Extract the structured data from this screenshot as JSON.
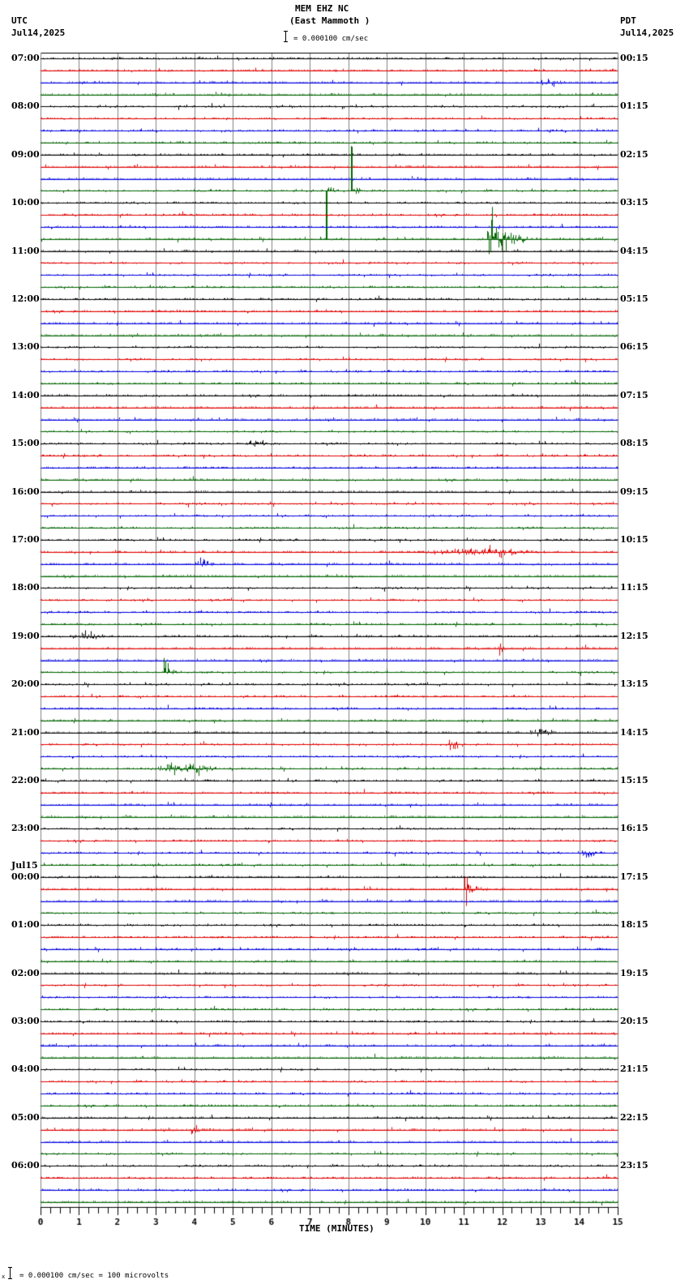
{
  "header": {
    "station": "MEM EHZ NC",
    "location": "(East Mammoth )",
    "left_tz": "UTC",
    "left_date": "Jul14,2025",
    "right_tz": "PDT",
    "right_date": "Jul14,2025",
    "scale_text": "= 0.000100 cm/sec"
  },
  "footer": {
    "scale_prefix": "x",
    "scale_text": "= 0.000100 cm/sec =     100 microvolts"
  },
  "chart_data": {
    "type": "line",
    "title": "MEM EHZ NC (East Mammoth )",
    "xlabel": "TIME (MINUTES)",
    "ylabel": "",
    "x_ticks": [
      "0",
      "1",
      "2",
      "3",
      "4",
      "5",
      "6",
      "7",
      "8",
      "9",
      "10",
      "11",
      "12",
      "13",
      "14",
      "15"
    ],
    "xlim": [
      0,
      15
    ],
    "grid": true,
    "trace_minutes": 15,
    "traces_per_hour": 4,
    "num_traces": 96,
    "trace_colors": [
      "#000000",
      "#e00000",
      "#0000e0",
      "#006400"
    ],
    "left_hour_labels": [
      {
        "trace": 0,
        "label": "07:00"
      },
      {
        "trace": 4,
        "label": "08:00"
      },
      {
        "trace": 8,
        "label": "09:00"
      },
      {
        "trace": 12,
        "label": "10:00"
      },
      {
        "trace": 16,
        "label": "11:00"
      },
      {
        "trace": 20,
        "label": "12:00"
      },
      {
        "trace": 24,
        "label": "13:00"
      },
      {
        "trace": 28,
        "label": "14:00"
      },
      {
        "trace": 32,
        "label": "15:00"
      },
      {
        "trace": 36,
        "label": "16:00"
      },
      {
        "trace": 40,
        "label": "17:00"
      },
      {
        "trace": 44,
        "label": "18:00"
      },
      {
        "trace": 48,
        "label": "19:00"
      },
      {
        "trace": 52,
        "label": "20:00"
      },
      {
        "trace": 56,
        "label": "21:00"
      },
      {
        "trace": 60,
        "label": "22:00"
      },
      {
        "trace": 64,
        "label": "23:00"
      },
      {
        "trace": 68,
        "label": "00:00",
        "date": "Jul15"
      },
      {
        "trace": 72,
        "label": "01:00"
      },
      {
        "trace": 76,
        "label": "02:00"
      },
      {
        "trace": 80,
        "label": "03:00"
      },
      {
        "trace": 84,
        "label": "04:00"
      },
      {
        "trace": 88,
        "label": "05:00"
      },
      {
        "trace": 92,
        "label": "06:00"
      }
    ],
    "right_hour_labels": [
      {
        "trace": 0,
        "label": "00:15"
      },
      {
        "trace": 4,
        "label": "01:15"
      },
      {
        "trace": 8,
        "label": "02:15"
      },
      {
        "trace": 12,
        "label": "03:15"
      },
      {
        "trace": 16,
        "label": "04:15"
      },
      {
        "trace": 20,
        "label": "05:15"
      },
      {
        "trace": 24,
        "label": "06:15"
      },
      {
        "trace": 28,
        "label": "07:15"
      },
      {
        "trace": 32,
        "label": "08:15"
      },
      {
        "trace": 36,
        "label": "09:15"
      },
      {
        "trace": 40,
        "label": "10:15"
      },
      {
        "trace": 44,
        "label": "11:15"
      },
      {
        "trace": 48,
        "label": "12:15"
      },
      {
        "trace": 52,
        "label": "13:15"
      },
      {
        "trace": 56,
        "label": "14:15"
      },
      {
        "trace": 60,
        "label": "15:15"
      },
      {
        "trace": 64,
        "label": "16:15"
      },
      {
        "trace": 68,
        "label": "17:15"
      },
      {
        "trace": 72,
        "label": "18:15"
      },
      {
        "trace": 76,
        "label": "19:15"
      },
      {
        "trace": 80,
        "label": "20:15"
      },
      {
        "trace": 84,
        "label": "21:15"
      },
      {
        "trace": 88,
        "label": "22:15"
      },
      {
        "trace": 92,
        "label": "23:15"
      }
    ],
    "events": [
      {
        "trace": 11,
        "minute": 7.4,
        "amplitude": 60,
        "duration": 1.0,
        "type": "spike"
      },
      {
        "trace": 11,
        "minute": 8.05,
        "amplitude": 55,
        "duration": 0.3,
        "type": "spike"
      },
      {
        "trace": 15,
        "minute": 11.6,
        "amplitude": 45,
        "duration": 1.6,
        "type": "quake"
      },
      {
        "trace": 32,
        "minute": 5.6,
        "amplitude": 6,
        "duration": 0.6,
        "type": "burst"
      },
      {
        "trace": 42,
        "minute": 4.25,
        "amplitude": 9,
        "duration": 0.5,
        "type": "burst"
      },
      {
        "trace": 41,
        "minute": 11.5,
        "amplitude": 6,
        "duration": 3.5,
        "type": "burst"
      },
      {
        "trace": 49,
        "minute": 11.9,
        "amplitude": 14,
        "duration": 0.3,
        "type": "quake"
      },
      {
        "trace": 51,
        "minute": 3.2,
        "amplitude": 26,
        "duration": 0.5,
        "type": "quake"
      },
      {
        "trace": 48,
        "minute": 1.2,
        "amplitude": 6,
        "duration": 1.0,
        "type": "burst"
      },
      {
        "trace": 69,
        "minute": 11.0,
        "amplitude": 26,
        "duration": 0.7,
        "type": "quake"
      },
      {
        "trace": 89,
        "minute": 3.9,
        "amplitude": 20,
        "duration": 0.6,
        "type": "quake"
      },
      {
        "trace": 66,
        "minute": 14.2,
        "amplitude": 8,
        "duration": 0.5,
        "type": "burst"
      },
      {
        "trace": 57,
        "minute": 10.7,
        "amplitude": 7,
        "duration": 0.4,
        "type": "burst"
      },
      {
        "trace": 59,
        "minute": 3.6,
        "amplitude": 7,
        "duration": 2.0,
        "type": "burst"
      },
      {
        "trace": 56,
        "minute": 13.0,
        "amplitude": 6,
        "duration": 0.8,
        "type": "burst"
      },
      {
        "trace": 2,
        "minute": 13.2,
        "amplitude": 5,
        "duration": 0.8,
        "type": "burst"
      },
      {
        "trace": 74,
        "minute": 3.9,
        "amplitude": 10,
        "duration": 0.2,
        "type": "quake"
      }
    ]
  },
  "axis": {
    "xlabel": "TIME (MINUTES)"
  }
}
